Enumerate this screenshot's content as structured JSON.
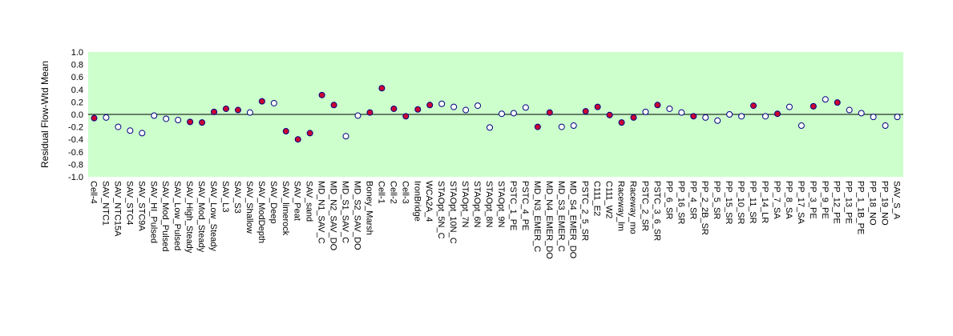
{
  "chart_data": {
    "type": "scatter",
    "ylabel": "Residual Flow-Wtd Mean",
    "ylim": [
      -1.0,
      1.0
    ],
    "ytick_labels": [
      "1.0",
      "0.8",
      "0.6",
      "0.4",
      "0.2",
      "0.0",
      "-0.2",
      "-0.4",
      "-0.6",
      "-0.8",
      "-1.0"
    ],
    "grid": false,
    "zero_line": true,
    "colors": {
      "plot_bg": "#ccffcc",
      "filled_marker": "#cc0033",
      "open_marker_fill": "#ffffff",
      "open_marker_edge": "#000080",
      "zero_line": "#000000"
    },
    "categories": [
      "Cell-4",
      "SAV_NTC1",
      "SAV_NTC15A",
      "SAV_STC4",
      "SAV_STC9A",
      "SAV_HI_Pulsed",
      "SAV_Mod_Pulsed",
      "SAV_Low_Pulsed",
      "SAV_High_Steady",
      "SAV_Mod_Steady",
      "SAV_Low_Steady",
      "SAV_L3",
      "SAV_S3",
      "SAV_Shallow",
      "SAV_ModDepth",
      "SAV_Deep",
      "SAV_limerock",
      "SAV_Peat",
      "SAV_sand",
      "MD_N1_SAV_C",
      "MD_N2_SAV_DO",
      "MD_S1_SAV_C",
      "MD_S2_SAV_DO",
      "Boney_Marsh",
      "Cell-1",
      "Cell-2",
      "Cell-3",
      "IronBridge",
      "WCA2A_4",
      "STAOpt_5N_C",
      "STAOpt_10N_C",
      "STAOpt_7N",
      "STAOpt_6N",
      "STAOpt_8N",
      "STAOpt_9N",
      "PSTC_1_PE",
      "PSTC_4_PE",
      "MD_N3_EMER_C",
      "MD_N4_EMER_DO",
      "MD_S3_EMER_C",
      "MD_S4_EMER_DO",
      "PSTC_2_5_SR",
      "C111_E2",
      "C111_W2",
      "Raceway_lm",
      "Raceway_mo",
      "PSTC_2_SR",
      "PSTC_3_6_SR",
      "PP_6_SR",
      "PP_16_SR",
      "PP_4_SR",
      "PP_2_2B_SR",
      "PP_5_SR",
      "PP_15_SR",
      "PP_10_SR",
      "PP_11_SR",
      "PP_14_LR",
      "PP_7_SA",
      "PP_8_SA",
      "PP_17_SA",
      "PP_3_PE",
      "PP_9_PE",
      "PP_12_PE",
      "PP_13_PE",
      "PP_1_1B_PE",
      "PP_18_NO",
      "PP_19_NO",
      "SAV_S_A"
    ],
    "values": [
      -0.06,
      -0.05,
      -0.2,
      -0.26,
      -0.3,
      -0.02,
      -0.07,
      -0.09,
      -0.12,
      -0.13,
      0.04,
      0.09,
      0.07,
      0.03,
      0.21,
      0.18,
      -0.27,
      -0.4,
      -0.3,
      0.31,
      0.15,
      -0.35,
      -0.02,
      0.03,
      0.42,
      0.09,
      -0.03,
      0.08,
      0.15,
      0.17,
      0.12,
      0.07,
      0.14,
      -0.21,
      0.01,
      0.02,
      0.11,
      -0.2,
      0.03,
      -0.2,
      -0.18,
      0.05,
      0.12,
      -0.01,
      -0.13,
      -0.05,
      0.04,
      0.15,
      0.09,
      0.03,
      -0.03,
      -0.05,
      -0.1,
      0.0,
      -0.03,
      0.14,
      -0.03,
      0.01,
      0.12,
      -0.18,
      0.13,
      0.24,
      0.19,
      0.07,
      0.02,
      -0.04,
      -0.18,
      -0.04
    ],
    "filled": [
      true,
      false,
      false,
      false,
      false,
      false,
      false,
      false,
      true,
      true,
      true,
      true,
      true,
      false,
      true,
      false,
      true,
      true,
      true,
      true,
      true,
      false,
      false,
      true,
      true,
      true,
      true,
      true,
      true,
      false,
      false,
      false,
      false,
      false,
      false,
      false,
      false,
      true,
      true,
      false,
      false,
      true,
      true,
      true,
      true,
      true,
      false,
      true,
      false,
      false,
      true,
      false,
      false,
      false,
      false,
      true,
      false,
      true,
      false,
      false,
      true,
      false,
      true,
      false,
      false,
      false,
      false,
      false
    ]
  }
}
